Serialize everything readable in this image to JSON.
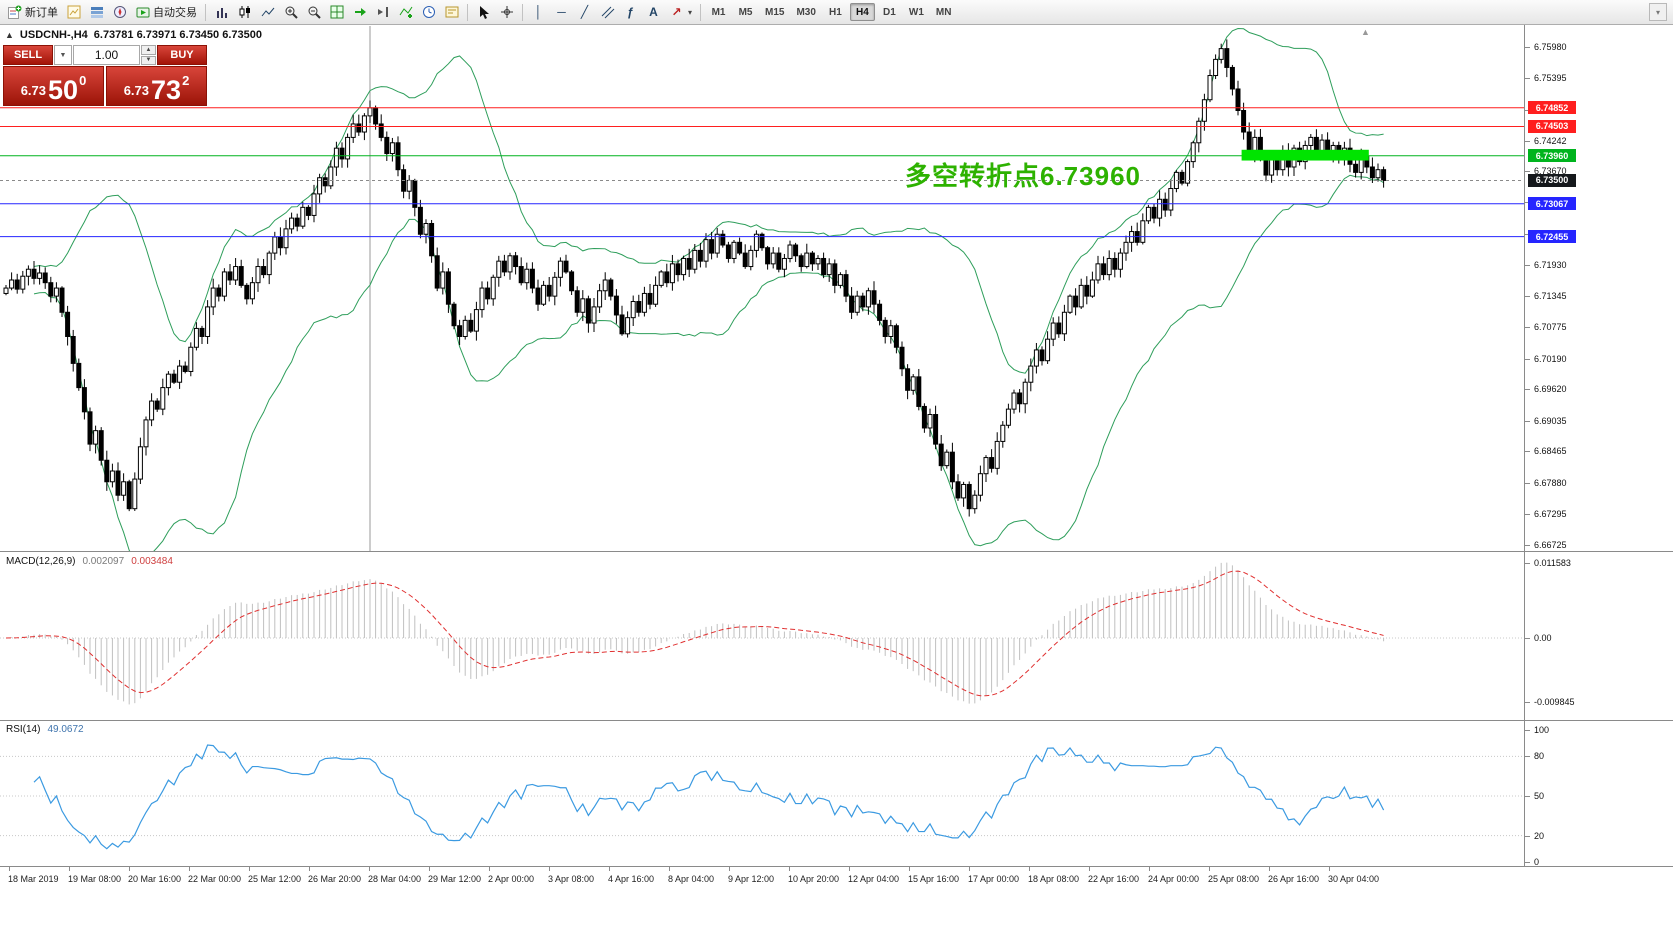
{
  "quote": {
    "collapse_icon": "▲",
    "symbol_period": "USDCNH-,H4",
    "ohlc": "6.73781 6.73971 6.73450 6.73500"
  },
  "trade_panel": {
    "sell_label": "SELL",
    "buy_label": "BUY",
    "volume": "1.00",
    "sell_price_big": "6.73",
    "sell_price_pips": "50",
    "sell_price_frac": "0",
    "buy_price_big": "6.73",
    "buy_price_pips": "73",
    "buy_price_frac": "2"
  },
  "annotation": {
    "text": "多空转折点6.73960",
    "color": "#2db200"
  },
  "colors": {
    "button_red": "#c1272d",
    "line_red": "#ff1f1f",
    "line_green": "#00b41e",
    "line_blue": "#2525ff",
    "current_price_badge": "#15181c",
    "histogram_silver": "#c0c0c0",
    "macd_signal_red": "#e03030",
    "rsi_blue": "#3b9ae1",
    "bollinger_green": "#2e9e5b",
    "rect_green": "#00e400"
  },
  "toolbar": {
    "groups": [
      {
        "name": "trade-group",
        "items": [
          {
            "name": "new-order-button",
            "icon": "new-order-icon",
            "label": "新订单"
          },
          {
            "name": "new-chart-button",
            "icon": "new-chart-icon"
          },
          {
            "name": "market-watch-button",
            "icon": "market-watch-icon"
          },
          {
            "name": "navigator-button",
            "icon": "navigator-icon"
          },
          {
            "name": "autotrading-button",
            "icon": "autotrading-icon",
            "label": "自动交易"
          }
        ]
      },
      {
        "name": "chart-group",
        "items": [
          {
            "name": "bar-chart-button",
            "icon": "bar-chart-icon"
          },
          {
            "name": "candlestick-chart-button",
            "icon": "candlestick-icon"
          },
          {
            "name": "line-chart-button",
            "icon": "line-chart-icon"
          },
          {
            "name": "zoom-in-button",
            "icon": "zoom-in-icon"
          },
          {
            "name": "zoom-out-button",
            "icon": "zoom-out-icon"
          },
          {
            "name": "tile-windows-button",
            "icon": "tile-windows-icon"
          },
          {
            "name": "auto-scroll-button",
            "icon": "auto-scroll-icon"
          },
          {
            "name": "chart-shift-button",
            "icon": "chart-shift-icon"
          },
          {
            "name": "indicators-button",
            "icon": "indicators-icon"
          },
          {
            "name": "periods-button",
            "icon": "periods-icon"
          },
          {
            "name": "templates-button",
            "icon": "templates-icon"
          }
        ]
      },
      {
        "name": "cursor-group",
        "items": [
          {
            "name": "cursor-button",
            "icon": "cursor-icon"
          },
          {
            "name": "crosshair-button",
            "icon": "crosshair-icon"
          }
        ]
      },
      {
        "name": "objects-group",
        "items": [
          {
            "name": "vertical-line-button",
            "icon": "vertical-line-icon"
          },
          {
            "name": "horizontal-line-button",
            "icon": "horizontal-line-icon"
          },
          {
            "name": "trendline-button",
            "icon": "trendline-icon"
          },
          {
            "name": "channel-button",
            "icon": "channel-icon"
          },
          {
            "name": "fibonacci-button",
            "icon": "fibonacci-icon"
          },
          {
            "name": "text-button",
            "icon": "text-icon"
          },
          {
            "name": "arrows-button",
            "icon": "arrows-icon",
            "dropdown": true
          }
        ]
      }
    ]
  },
  "timeframes": {
    "items": [
      "M1",
      "M5",
      "M15",
      "M30",
      "H1",
      "H4",
      "D1",
      "W1",
      "MN"
    ],
    "active": "H4"
  },
  "price_axis": {
    "ticks": [
      "6.75980",
      "6.75395",
      "6.74810",
      "6.74242",
      "6.73670",
      "6.73095",
      "6.72510",
      "6.71930",
      "6.71345",
      "6.70775",
      "6.70190",
      "6.69620",
      "6.69035",
      "6.68465",
      "6.67880",
      "6.67295",
      "6.66725"
    ],
    "badges": [
      {
        "value": "6.74852",
        "color": "#ff1f1f"
      },
      {
        "value": "6.74503",
        "color": "#ff1f1f"
      },
      {
        "value": "6.73960",
        "color": "#00b41e"
      },
      {
        "value": "6.73500",
        "color": "#15181c"
      },
      {
        "value": "6.73067",
        "color": "#2525ff"
      },
      {
        "value": "6.72455",
        "color": "#2525ff"
      }
    ]
  },
  "macd_axis": [
    "0.011583",
    "0.00",
    "-0.009845"
  ],
  "rsi_axis": [
    "100",
    "80",
    "50",
    "20",
    "0"
  ],
  "chart_data": {
    "type": "candlestick",
    "symbol": "USDCNH-",
    "period": "H4",
    "title": "USDCNH-,H4",
    "ohlc_info": {
      "open": "6.73781",
      "high": "6.73971",
      "low": "6.73450",
      "close": "6.73500"
    },
    "y_range": [
      6.66725,
      6.7598
    ],
    "closes": [
      6.715,
      6.7165,
      6.7148,
      6.7172,
      6.7185,
      6.7168,
      6.7178,
      6.716,
      6.7135,
      6.715,
      6.7105,
      6.706,
      6.701,
      6.6965,
      6.692,
      6.686,
      6.6885,
      6.683,
      6.679,
      6.681,
      6.6765,
      6.679,
      6.674,
      6.6795,
      6.6855,
      6.6905,
      6.694,
      6.6925,
      6.6965,
      6.699,
      6.6975,
      6.7005,
      6.6995,
      6.704,
      6.7075,
      6.706,
      6.7115,
      6.715,
      6.7135,
      6.718,
      6.7165,
      6.719,
      6.7155,
      6.713,
      6.716,
      6.719,
      6.7175,
      6.7215,
      6.7245,
      6.7225,
      6.726,
      6.728,
      6.7265,
      6.73,
      6.7285,
      6.7325,
      6.7355,
      6.734,
      6.7375,
      6.741,
      6.739,
      6.743,
      6.7455,
      6.744,
      6.747,
      6.7485,
      6.7455,
      6.743,
      6.74,
      6.742,
      6.737,
      6.733,
      6.735,
      6.73,
      6.725,
      6.727,
      6.721,
      6.715,
      6.718,
      6.712,
      6.708,
      6.706,
      6.709,
      6.707,
      6.711,
      6.715,
      6.713,
      6.717,
      6.72,
      6.718,
      6.721,
      6.719,
      6.716,
      6.7185,
      6.715,
      6.712,
      6.7155,
      6.7135,
      6.717,
      6.72,
      6.718,
      6.7145,
      6.7105,
      6.713,
      6.7085,
      6.7115,
      6.7145,
      6.7165,
      6.7135,
      6.71,
      6.7065,
      6.7095,
      6.7125,
      6.7105,
      6.714,
      6.712,
      6.7155,
      6.718,
      6.716,
      6.7195,
      6.7175,
      6.7205,
      6.7185,
      6.722,
      6.72,
      6.724,
      6.7215,
      6.725,
      6.723,
      6.7205,
      6.7235,
      6.7215,
      6.719,
      6.722,
      6.725,
      6.7225,
      6.7195,
      6.7215,
      6.7185,
      6.7205,
      6.723,
      6.721,
      6.719,
      6.7215,
      6.7195,
      6.7205,
      6.7175,
      6.7195,
      6.7155,
      6.7175,
      6.7135,
      6.7105,
      6.7135,
      6.7115,
      6.7145,
      6.712,
      6.709,
      6.706,
      6.708,
      6.704,
      6.7,
      6.696,
      6.6985,
      6.693,
      6.689,
      6.6915,
      6.686,
      6.682,
      6.6845,
      6.679,
      6.676,
      6.6785,
      6.674,
      6.6765,
      6.6805,
      6.6835,
      6.6815,
      6.6865,
      6.6895,
      6.6925,
      6.6955,
      6.6935,
      6.6975,
      6.7005,
      6.7035,
      6.7015,
      6.7055,
      6.7085,
      6.7065,
      6.7105,
      6.7135,
      6.7115,
      6.7155,
      6.7135,
      6.7165,
      6.7195,
      6.7175,
      6.7205,
      6.7185,
      6.7215,
      6.7235,
      6.7255,
      6.7235,
      6.7275,
      6.73,
      6.728,
      6.7315,
      6.7295,
      6.7335,
      6.7365,
      6.7345,
      6.7385,
      6.742,
      6.746,
      6.75,
      6.7545,
      6.7575,
      6.7595,
      6.756,
      6.752,
      6.748,
      6.744,
      6.74,
      6.743,
      6.739,
      6.736,
      6.7395,
      6.737,
      6.7405,
      6.7375,
      6.741,
      6.7385,
      6.7415,
      6.743,
      6.7405,
      6.7425,
      6.7395,
      6.7415,
      6.739,
      6.741,
      6.738,
      6.7365,
      6.7395,
      6.7375,
      6.7355,
      6.737,
      6.735
    ],
    "indicators": {
      "bollinger": {
        "period": 20,
        "deviation": 2,
        "color": "#2e9e5b"
      },
      "macd": {
        "label": "MACD(12,26,9)",
        "value1": "0.002097",
        "value2": "0.003484",
        "fast": 12,
        "slow": 26,
        "signal": 9,
        "histogram_color": "#c0c0c0",
        "signal_color": "#e03030",
        "axis_labels": [
          "0.011583",
          "0.00",
          "-0.009845"
        ]
      },
      "rsi": {
        "label": "RSI(14)",
        "value": "49.0672",
        "period": 14,
        "color": "#3b9ae1",
        "levels": [
          100,
          80,
          50,
          20,
          0
        ]
      }
    },
    "objects": {
      "hlines": [
        {
          "price": 6.74852,
          "color": "#ff1f1f"
        },
        {
          "price": 6.74503,
          "color": "#ff1f1f"
        },
        {
          "price": 6.7396,
          "color": "#00b41e"
        },
        {
          "price": 6.73067,
          "color": "#2525ff"
        },
        {
          "price": 6.72455,
          "color": "#2525ff"
        }
      ],
      "current_price": {
        "value": 6.735,
        "label": "6.73500",
        "line_color": "#8a8a8a"
      },
      "rectangle": {
        "from_index": 221,
        "to_index": 243,
        "price_top": 6.7407,
        "price_bottom": 6.7387,
        "color": "#00e400"
      },
      "vline_index": 65
    },
    "time_axis": [
      "18 Mar 2019",
      "19 Mar 08:00",
      "20 Mar 16:00",
      "22 Mar 00:00",
      "25 Mar 12:00",
      "26 Mar 20:00",
      "28 Mar 04:00",
      "29 Mar 12:00",
      "2 Apr 00:00",
      "3 Apr 08:00",
      "4 Apr 16:00",
      "8 Apr 04:00",
      "9 Apr 12:00",
      "10 Apr 20:00",
      "12 Apr 04:00",
      "15 Apr 16:00",
      "17 Apr 00:00",
      "18 Apr 08:00",
      "22 Apr 16:00",
      "24 Apr 00:00",
      "25 Apr 08:00",
      "26 Apr 16:00",
      "30 Apr 04:00"
    ]
  }
}
